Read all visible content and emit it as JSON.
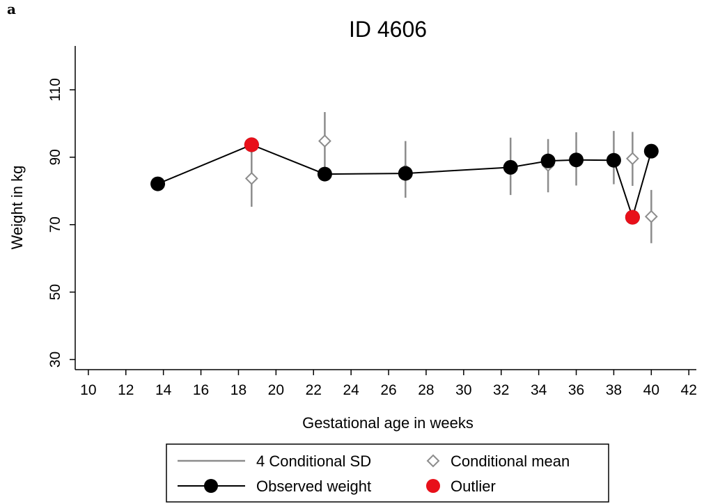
{
  "panel_label": "a",
  "chart_data": {
    "type": "line",
    "title": "ID 4606",
    "xlabel": "Gestational age in weeks",
    "ylabel": "Weight in kg",
    "xlim": [
      9.3,
      42.4
    ],
    "ylim": [
      27,
      123
    ],
    "xticks": [
      10,
      12,
      14,
      16,
      18,
      20,
      22,
      24,
      26,
      28,
      30,
      32,
      34,
      36,
      38,
      40,
      42
    ],
    "yticks": [
      30,
      50,
      70,
      90,
      110
    ],
    "grid": false,
    "legend_position": "bottom",
    "observed_weight": {
      "name": "Observed weight",
      "x": [
        13.7,
        18.7,
        22.6,
        26.9,
        32.5,
        34.5,
        36.0,
        38.0,
        39.0,
        40.0
      ],
      "y": [
        82.1,
        93.7,
        85.0,
        85.2,
        87.0,
        88.9,
        89.2,
        89.1,
        72.2,
        91.8
      ]
    },
    "outliers": {
      "name": "Outlier",
      "x": [
        18.7,
        39.0
      ],
      "y": [
        93.7,
        72.2
      ]
    },
    "conditional_mean": {
      "name": "Conditional mean",
      "x": [
        18.7,
        22.6,
        26.9,
        32.5,
        34.5,
        36.0,
        38.0,
        39.0,
        40.0
      ],
      "y": [
        83.7,
        94.8,
        86.0,
        87.0,
        87.6,
        89.2,
        89.6,
        89.6,
        72.4
      ]
    },
    "conditional_sd": {
      "name": "4 Conditional SD",
      "x": [
        18.7,
        22.6,
        26.9,
        32.5,
        34.5,
        36.0,
        38.0,
        39.0,
        40.0
      ],
      "low": [
        75.3,
        86.5,
        78.0,
        78.8,
        79.6,
        81.6,
        82.0,
        81.5,
        64.5
      ],
      "high": [
        92.3,
        103.4,
        94.8,
        95.8,
        95.4,
        97.4,
        97.8,
        97.5,
        80.3
      ]
    },
    "colors": {
      "observed": "#000000",
      "outlier": "#e8101a",
      "conditional": "#8c8c8c"
    }
  },
  "legend": {
    "items": [
      {
        "key": "sd",
        "label": "4 Conditional SD"
      },
      {
        "key": "mean",
        "label": "Conditional mean"
      },
      {
        "key": "observed",
        "label": "Observed weight"
      },
      {
        "key": "outlier",
        "label": "Outlier"
      }
    ]
  }
}
